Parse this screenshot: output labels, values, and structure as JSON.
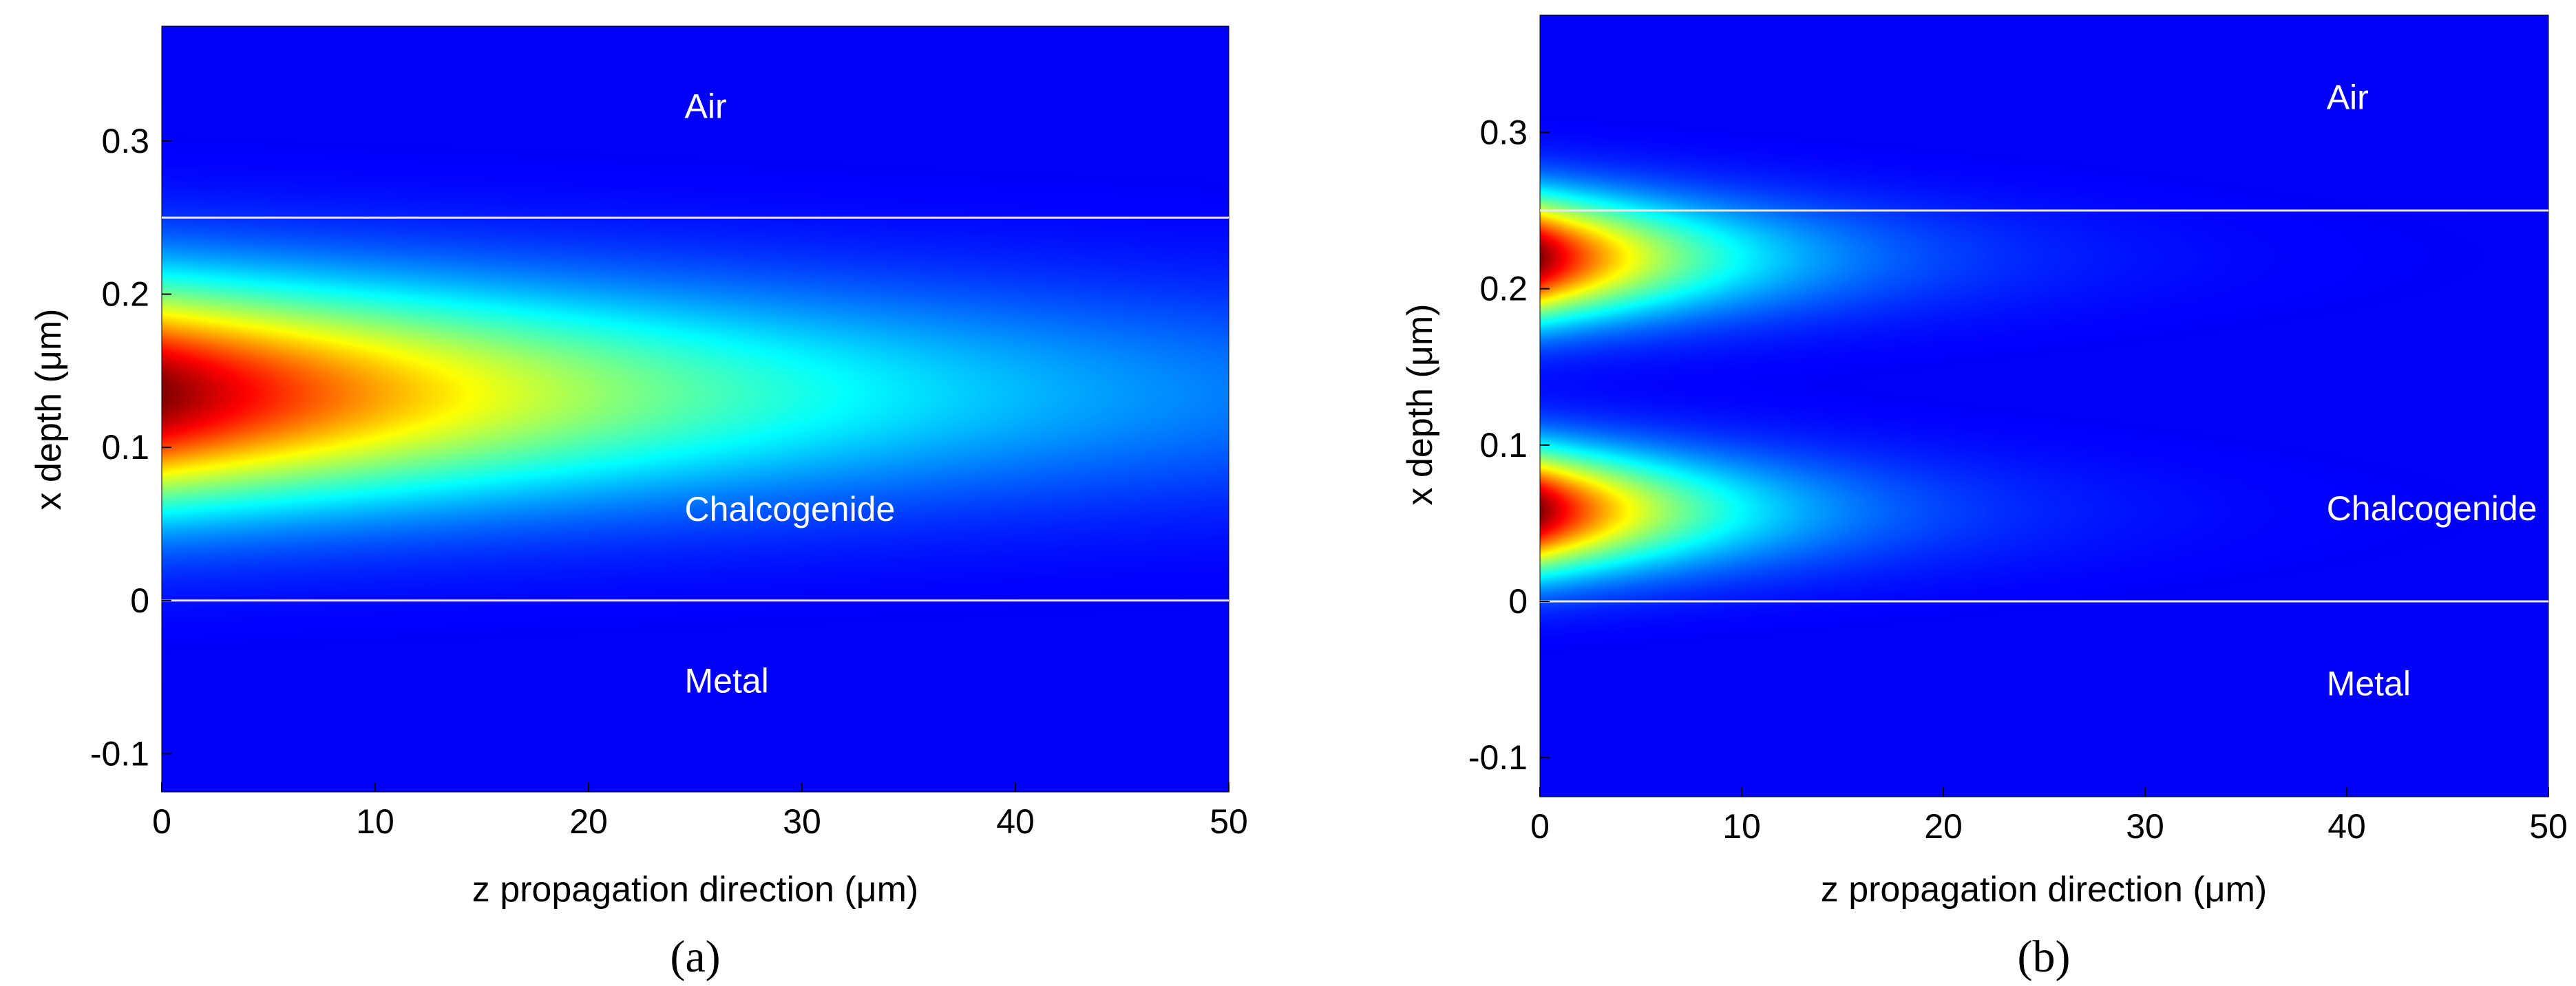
{
  "chart_data": [
    {
      "type": "heatmap",
      "caption": "(a)",
      "xlabel": "z propagation direction (μm)",
      "ylabel": "x depth (μm)",
      "xlim": [
        0,
        50
      ],
      "ylim": [
        -0.125,
        0.375
      ],
      "xticks": [
        0,
        10,
        20,
        30,
        40,
        50
      ],
      "yticks": [
        -0.1,
        0,
        0.1,
        0.2,
        0.3
      ],
      "xtick_labels": [
        "0",
        "10",
        "20",
        "30",
        "40",
        "50"
      ],
      "ytick_labels": [
        "-0.1",
        "0",
        "0.1",
        "0.2",
        "0.3"
      ],
      "interfaces": [
        0,
        0.25
      ],
      "regions": [
        {
          "label": "Air",
          "x": 24.5,
          "y": 0.315
        },
        {
          "label": "Chalcogenide",
          "x": 24.5,
          "y": 0.052
        },
        {
          "label": "Metal",
          "x": 24.5,
          "y": -0.06
        }
      ],
      "modes": [
        {
          "center": 0.135,
          "width": 0.07,
          "decay_length": 26
        }
      ],
      "colormap": "jet"
    },
    {
      "type": "heatmap",
      "caption": "(b)",
      "xlabel": "z propagation direction (μm)",
      "ylabel": "x depth (μm)",
      "xlim": [
        0,
        50
      ],
      "ylim": [
        -0.125,
        0.375
      ],
      "xticks": [
        0,
        10,
        20,
        30,
        40,
        50
      ],
      "yticks": [
        -0.1,
        0,
        0.1,
        0.2,
        0.3
      ],
      "xtick_labels": [
        "0",
        "10",
        "20",
        "30",
        "40",
        "50"
      ],
      "ytick_labels": [
        "-0.1",
        "0",
        "0.1",
        "0.2",
        "0.3"
      ],
      "interfaces": [
        0,
        0.25
      ],
      "regions": [
        {
          "label": "Air",
          "x": 39,
          "y": 0.315
        },
        {
          "label": "Chalcogenide",
          "x": 39,
          "y": 0.052
        },
        {
          "label": "Metal",
          "x": 39,
          "y": -0.06
        }
      ],
      "modes": [
        {
          "center": 0.22,
          "width": 0.038,
          "decay_length": 8
        },
        {
          "center": 0.058,
          "width": 0.038,
          "decay_length": 8
        }
      ],
      "colormap": "jet"
    }
  ]
}
